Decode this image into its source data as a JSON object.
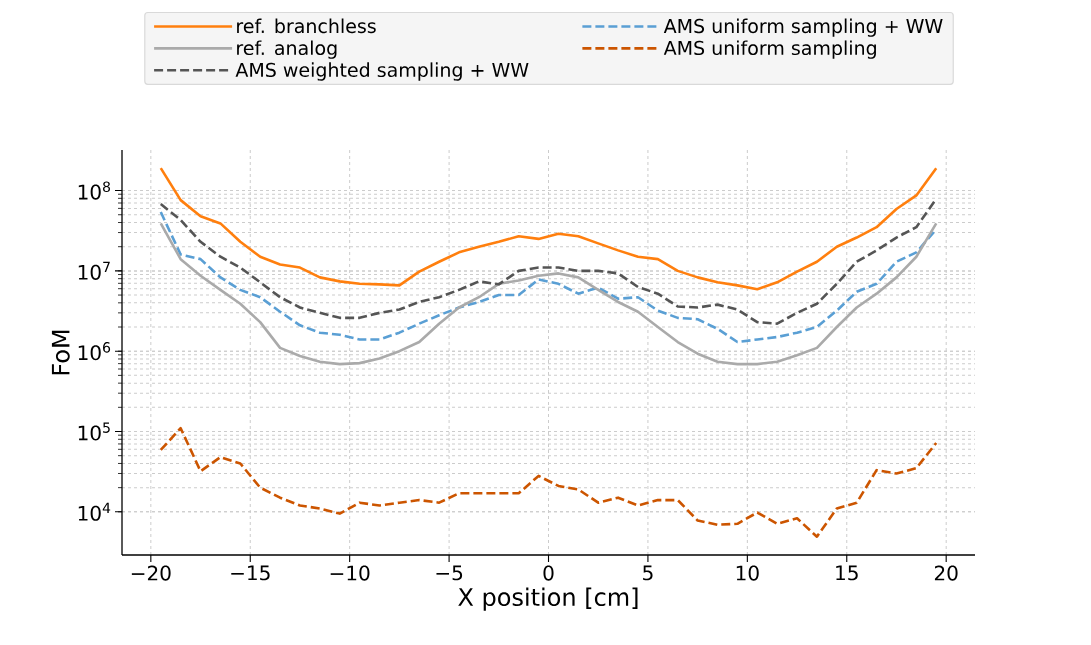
{
  "chart_data": {
    "type": "line",
    "xlabel": "X position [cm]",
    "ylabel": "FoM",
    "log": "y",
    "grid": true,
    "legend": "top",
    "x": [
      -19.5,
      -18.5,
      -17.5,
      -16.5,
      -15.5,
      -14.5,
      -13.5,
      -12.5,
      -11.5,
      -10.5,
      -9.5,
      -8.5,
      -7.5,
      -6.5,
      -5.5,
      -4.5,
      -3.5,
      -2.5,
      -1.5,
      -0.5,
      0.5,
      1.5,
      2.5,
      3.5,
      4.5,
      5.5,
      6.5,
      7.5,
      8.5,
      9.5,
      10.5,
      11.5,
      12.5,
      13.5,
      14.5,
      15.5,
      16.5,
      17.5,
      18.5,
      19.5
    ],
    "xlim": [
      -21.45,
      21.45
    ],
    "xticks": [
      {
        "value": -20,
        "label": "−20"
      },
      {
        "value": -15,
        "label": "−15"
      },
      {
        "value": -10,
        "label": "−10"
      },
      {
        "value": -5,
        "label": "−5"
      },
      0,
      5,
      10,
      15,
      20
    ],
    "ylim": [
      2900,
      320000000
    ],
    "yticks": [
      {
        "value": 10000,
        "label": "10$^{4}$"
      },
      {
        "value": 100000,
        "label": "10$^{5}$"
      },
      {
        "value": 1000000,
        "label": "10$^{6}$"
      },
      {
        "value": 10000000,
        "label": "10$^{7}$"
      },
      {
        "value": 100000000,
        "label": "10$^{8}$"
      }
    ],
    "series": [
      {
        "name": "ref. branchless",
        "color": "#ff7f0e",
        "line_style": "solid",
        "values": [
          190000000.0,
          76000000.0,
          48000000.0,
          39000000.0,
          23000000.0,
          15000000.0,
          12000000.0,
          11000000.0,
          8300000.0,
          7400000.0,
          6900000.0,
          6800000.0,
          6600000.0,
          9800000.0,
          13000000.0,
          17000000.0,
          20000000.0,
          23000000.0,
          27000000.0,
          25000000.0,
          29000000.0,
          27000000.0,
          22000000.0,
          18000000.0,
          15000000.0,
          14000000.0,
          10000000.0,
          8300000.0,
          7200000.0,
          6600000.0,
          5900000.0,
          7200000.0,
          9800000.0,
          13000000.0,
          20000000.0,
          26000000.0,
          35000000.0,
          59000000.0,
          87000000.0,
          190000000.0
        ]
      },
      {
        "name": "ref. analog",
        "color": "#aaaaaa",
        "line_style": "solid",
        "values": [
          39000000.0,
          14000000.0,
          8700000.0,
          5800000.0,
          3900000.0,
          2300000.0,
          1100000.0,
          870000.0,
          740000.0,
          690000.0,
          710000.0,
          810000.0,
          1000000.0,
          1300000.0,
          2200000.0,
          3500000.0,
          4700000.0,
          6900000.0,
          7600000.0,
          8700000.0,
          9300000.0,
          8300000.0,
          5800000.0,
          4100000.0,
          3100000.0,
          2000000.0,
          1300000.0,
          930000.0,
          740000.0,
          690000.0,
          690000.0,
          740000.0,
          890000.0,
          1100000.0,
          2000000.0,
          3500000.0,
          5200000.0,
          8300000.0,
          15000000.0,
          39000000.0
        ]
      },
      {
        "name": "AMS weighted sampling + WW",
        "color": "#555555",
        "line_style": "dashed",
        "values": [
          68000000.0,
          43000000.0,
          23000000.0,
          15000000.0,
          11000000.0,
          7200000.0,
          4700000.0,
          3500000.0,
          3000000.0,
          2600000.0,
          2600000.0,
          3000000.0,
          3300000.0,
          4100000.0,
          4700000.0,
          5800000.0,
          7400000.0,
          6800000.0,
          10000000.0,
          11000000.0,
          11000000.0,
          10000000.0,
          10000000.0,
          9300000.0,
          6300000.0,
          5200000.0,
          3600000.0,
          3500000.0,
          3800000.0,
          3300000.0,
          2300000.0,
          2200000.0,
          3000000.0,
          3900000.0,
          6900000.0,
          13000000.0,
          18000000.0,
          26000000.0,
          35000000.0,
          79000000.0
        ]
      },
      {
        "name": "AMS uniform sampling + WW",
        "color": "#5a9fd4",
        "line_style": "dashed",
        "values": [
          54000000.0,
          16000000.0,
          14000000.0,
          8300000.0,
          5800000.0,
          4700000.0,
          3100000.0,
          2100000.0,
          1700000.0,
          1600000.0,
          1400000.0,
          1400000.0,
          1700000.0,
          2200000.0,
          2800000.0,
          3500000.0,
          4100000.0,
          5000000.0,
          5000000.0,
          7800000.0,
          6900000.0,
          5200000.0,
          6200000.0,
          4500000.0,
          4700000.0,
          3200000.0,
          2600000.0,
          2500000.0,
          1900000.0,
          1300000.0,
          1400000.0,
          1500000.0,
          1700000.0,
          2000000.0,
          3200000.0,
          5500000.0,
          6900000.0,
          13000000.0,
          17000000.0,
          33000000.0
        ]
      },
      {
        "name": "AMS uniform sampling",
        "color": "#cc5500",
        "line_style": "dashed",
        "values": [
          59000.0,
          110000.0,
          32000.0,
          48000.0,
          40000.0,
          20000.0,
          15000.0,
          12000.0,
          11000.0,
          9500.0,
          13000.0,
          12000.0,
          13000.0,
          14000.0,
          13000.0,
          17000.0,
          17000.0,
          17000.0,
          17000.0,
          28000.0,
          21000.0,
          19000.0,
          13000.0,
          15000.0,
          12000.0,
          14000.0,
          14000.0,
          7800.0,
          6900.0,
          7100.0,
          9800.0,
          7100.0,
          8300.0,
          4900.0,
          11000.0,
          13000.0,
          33000.0,
          30000.0,
          35000.0,
          72000.0
        ]
      }
    ]
  }
}
